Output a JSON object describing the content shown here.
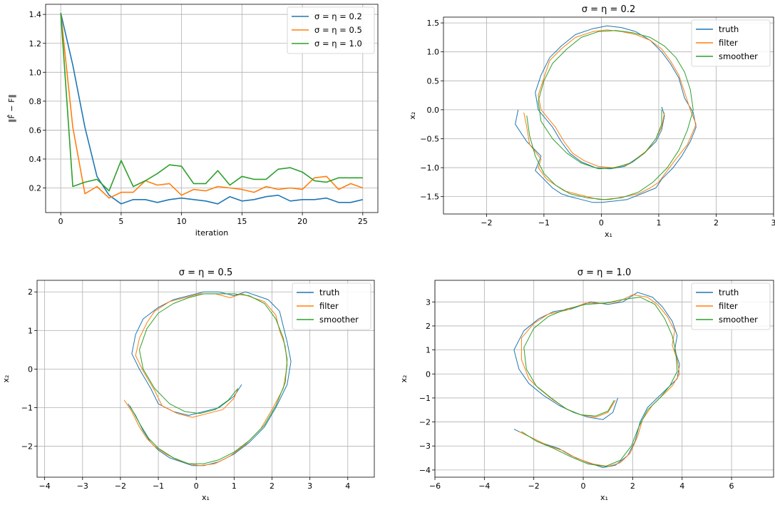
{
  "colors": {
    "blue": "#1f77b4",
    "orange": "#ff7f0e",
    "green": "#2ca02c"
  },
  "chart_data": [
    {
      "type": "line",
      "title": "",
      "xlabel": "iteration",
      "ylabel": "‖F̂ − F‖",
      "xlim": [
        -1.25,
        26.25
      ],
      "ylim": [
        0.03,
        1.47
      ],
      "xticks": [
        0,
        5,
        10,
        15,
        20,
        25
      ],
      "yticks": [
        0.2,
        0.4,
        0.6,
        0.8,
        1.0,
        1.2,
        1.4
      ],
      "xtick_labels": [
        "0",
        "5",
        "10",
        "15",
        "20",
        "25"
      ],
      "ytick_labels": [
        "0.2",
        "0.4",
        "0.6",
        "0.8",
        "1.0",
        "1.2",
        "1.4"
      ],
      "grid": true,
      "legend_position": "top-right",
      "x": [
        0,
        1,
        2,
        3,
        4,
        5,
        6,
        7,
        8,
        9,
        10,
        11,
        12,
        13,
        14,
        15,
        16,
        17,
        18,
        19,
        20,
        21,
        22,
        23,
        24,
        25
      ],
      "series": [
        {
          "name": "σ = η = 0.2",
          "color": "blue",
          "values": [
            1.41,
            1.05,
            0.62,
            0.28,
            0.15,
            0.09,
            0.12,
            0.12,
            0.1,
            0.12,
            0.13,
            0.12,
            0.11,
            0.09,
            0.14,
            0.11,
            0.12,
            0.14,
            0.15,
            0.11,
            0.12,
            0.12,
            0.13,
            0.1,
            0.1,
            0.12
          ]
        },
        {
          "name": "σ = η = 0.5",
          "color": "orange",
          "values": [
            1.41,
            0.62,
            0.16,
            0.21,
            0.13,
            0.17,
            0.17,
            0.25,
            0.22,
            0.23,
            0.15,
            0.19,
            0.18,
            0.21,
            0.2,
            0.19,
            0.17,
            0.21,
            0.19,
            0.2,
            0.19,
            0.27,
            0.28,
            0.19,
            0.23,
            0.2
          ]
        },
        {
          "name": "σ = η = 1.0",
          "color": "green",
          "values": [
            1.41,
            0.21,
            0.24,
            0.26,
            0.18,
            0.39,
            0.21,
            0.25,
            0.3,
            0.36,
            0.35,
            0.23,
            0.23,
            0.32,
            0.22,
            0.28,
            0.26,
            0.26,
            0.33,
            0.34,
            0.31,
            0.25,
            0.24,
            0.27,
            0.27,
            0.27
          ]
        }
      ]
    },
    {
      "type": "line",
      "title": "σ = η = 0.2",
      "xlabel": "x₁",
      "ylabel": "x₂",
      "xlim": [
        -2.75,
        3.0
      ],
      "ylim": [
        -1.8,
        1.6
      ],
      "xticks": [
        -2,
        -1,
        0,
        1,
        2,
        3
      ],
      "yticks": [
        -1.5,
        -1.0,
        -0.5,
        0.0,
        0.5,
        1.0,
        1.5
      ],
      "xtick_labels": [
        "−2",
        "−1",
        "0",
        "1",
        "2",
        "3"
      ],
      "ytick_labels": [
        "−1.5",
        "−1.0",
        "−0.5",
        "0.0",
        "0.5",
        "1.0",
        "1.5"
      ],
      "grid": true,
      "legend_position": "top-right",
      "series": [
        {
          "name": "truth",
          "color": "blue",
          "x": [
            -1.45,
            -1.5,
            -1.3,
            -1.05,
            -1.15,
            -1.0,
            -0.85,
            -0.7,
            -0.55,
            -0.35,
            -0.15,
            0.0,
            0.2,
            0.45,
            0.7,
            0.95,
            1.05,
            1.25,
            1.4,
            1.55,
            1.65,
            1.6,
            1.45,
            1.35,
            1.2,
            1.05,
            0.85,
            0.6,
            0.35,
            0.1,
            -0.15,
            -0.45,
            -0.7,
            -0.9,
            -1.05,
            -1.15,
            -1.1,
            -0.85,
            -0.7,
            -0.55,
            -0.35,
            -0.1,
            0.15,
            0.4,
            0.55,
            0.75,
            0.95,
            1.05,
            1.1,
            1.05
          ],
          "y": [
            0.0,
            -0.25,
            -0.55,
            -0.8,
            -1.05,
            -1.2,
            -1.35,
            -1.45,
            -1.5,
            -1.55,
            -1.6,
            -1.6,
            -1.58,
            -1.55,
            -1.45,
            -1.35,
            -1.2,
            -1.0,
            -0.8,
            -0.55,
            -0.3,
            -0.05,
            0.2,
            0.55,
            0.8,
            1.0,
            1.2,
            1.35,
            1.42,
            1.45,
            1.4,
            1.3,
            1.1,
            0.9,
            0.6,
            0.3,
            0.0,
            -0.3,
            -0.55,
            -0.75,
            -0.9,
            -1.0,
            -1.02,
            -0.98,
            -0.9,
            -0.75,
            -0.55,
            -0.35,
            -0.1,
            0.05
          ]
        },
        {
          "name": "filter",
          "color": "orange",
          "x": [
            -1.35,
            -1.3,
            -1.25,
            -1.05,
            -1.1,
            -0.95,
            -0.8,
            -0.65,
            -0.45,
            -0.25,
            -0.05,
            0.15,
            0.4,
            0.65,
            0.85,
            1.0,
            1.15,
            1.3,
            1.5,
            1.65,
            1.55,
            1.45,
            1.35,
            1.2,
            1.05,
            0.85,
            0.6,
            0.35,
            0.1,
            -0.15,
            -0.45,
            -0.7,
            -0.9,
            -1.0,
            -1.1,
            -1.05,
            -0.8,
            -0.65,
            -0.5,
            -0.3,
            -0.05,
            0.2,
            0.45,
            0.6,
            0.8,
            0.95,
            1.05,
            1.1
          ],
          "y": [
            -0.05,
            -0.3,
            -0.6,
            -0.85,
            -1.0,
            -1.2,
            -1.3,
            -1.4,
            -1.45,
            -1.5,
            -1.55,
            -1.55,
            -1.5,
            -1.45,
            -1.35,
            -1.25,
            -1.05,
            -0.85,
            -0.6,
            -0.25,
            0.0,
            0.3,
            0.6,
            0.85,
            1.05,
            1.2,
            1.3,
            1.35,
            1.38,
            1.35,
            1.25,
            1.05,
            0.85,
            0.55,
            0.25,
            0.0,
            -0.3,
            -0.55,
            -0.75,
            -0.88,
            -0.98,
            -1.0,
            -0.95,
            -0.85,
            -0.7,
            -0.5,
            -0.3,
            -0.05
          ]
        },
        {
          "name": "smoother",
          "color": "green",
          "x": [
            -1.3,
            -1.25,
            -1.15,
            -1.0,
            -0.8,
            -0.55,
            -0.25,
            0.05,
            0.35,
            0.65,
            0.9,
            1.15,
            1.35,
            1.5,
            1.6,
            1.55,
            1.45,
            1.3,
            1.1,
            0.85,
            0.55,
            0.25,
            -0.05,
            -0.35,
            -0.6,
            -0.85,
            -1.0,
            -1.1,
            -1.05,
            -0.85,
            -0.6,
            -0.35,
            -0.05,
            0.25,
            0.5,
            0.75,
            0.95,
            1.05,
            1.05
          ],
          "y": [
            -0.1,
            -0.45,
            -0.8,
            -1.1,
            -1.3,
            -1.45,
            -1.52,
            -1.55,
            -1.52,
            -1.42,
            -1.25,
            -1.0,
            -0.7,
            -0.35,
            0.0,
            0.35,
            0.65,
            0.9,
            1.1,
            1.25,
            1.33,
            1.37,
            1.35,
            1.25,
            1.05,
            0.8,
            0.5,
            0.15,
            -0.2,
            -0.5,
            -0.75,
            -0.92,
            -1.02,
            -1.0,
            -0.92,
            -0.75,
            -0.5,
            -0.25,
            0.0
          ]
        }
      ]
    },
    {
      "type": "line",
      "title": "σ = η = 0.5",
      "xlabel": "x₁",
      "ylabel": "x₂",
      "xlim": [
        -4.2,
        4.7
      ],
      "ylim": [
        -2.8,
        2.3
      ],
      "xticks": [
        -4,
        -3,
        -2,
        -1,
        0,
        1,
        2,
        3,
        4
      ],
      "yticks": [
        -2,
        -1,
        0,
        1,
        2
      ],
      "xtick_labels": [
        "−4",
        "−3",
        "−2",
        "−1",
        "0",
        "1",
        "2",
        "3",
        "4"
      ],
      "ytick_labels": [
        "−2",
        "−1",
        "0",
        "1",
        "2"
      ],
      "grid": true,
      "legend_position": "top-right",
      "series": [
        {
          "name": "truth",
          "color": "blue",
          "x": [
            -1.8,
            -1.6,
            -1.4,
            -1.2,
            -1.0,
            -0.7,
            -0.4,
            -0.1,
            0.2,
            0.6,
            1.0,
            1.4,
            1.8,
            2.1,
            2.4,
            2.5,
            2.4,
            2.3,
            2.2,
            1.9,
            1.6,
            1.3,
            1.0,
            0.6,
            0.2,
            -0.2,
            -0.6,
            -1.0,
            -1.4,
            -1.6,
            -1.7,
            -1.5,
            -1.2,
            -1.0,
            -0.6,
            -0.2,
            0.2,
            0.6,
            1.0,
            1.2
          ],
          "y": [
            -0.9,
            -1.2,
            -1.6,
            -1.9,
            -2.1,
            -2.3,
            -2.4,
            -2.5,
            -2.5,
            -2.4,
            -2.2,
            -1.9,
            -1.5,
            -1.0,
            -0.4,
            0.2,
            0.7,
            1.1,
            1.5,
            1.8,
            1.9,
            2.0,
            1.9,
            2.0,
            2.0,
            1.9,
            1.8,
            1.6,
            1.3,
            0.9,
            0.4,
            0.0,
            -0.5,
            -0.9,
            -1.1,
            -1.2,
            -1.1,
            -1.0,
            -0.7,
            -0.4
          ]
        },
        {
          "name": "filter",
          "color": "orange",
          "x": [
            -1.9,
            -1.7,
            -1.5,
            -1.3,
            -1.1,
            -0.8,
            -0.5,
            -0.2,
            0.1,
            0.5,
            0.9,
            1.3,
            1.7,
            2.0,
            2.3,
            2.4,
            2.35,
            2.2,
            2.1,
            1.8,
            1.5,
            1.2,
            0.9,
            0.5,
            0.1,
            -0.3,
            -0.7,
            -1.1,
            -1.3,
            -1.5,
            -1.6,
            -1.4,
            -1.1,
            -0.9,
            -0.5,
            -0.1,
            0.3,
            0.7,
            1.0,
            1.1
          ],
          "y": [
            -0.8,
            -1.1,
            -1.5,
            -1.8,
            -2.0,
            -2.2,
            -2.35,
            -2.45,
            -2.5,
            -2.45,
            -2.25,
            -1.95,
            -1.55,
            -1.05,
            -0.5,
            0.1,
            0.6,
            1.0,
            1.4,
            1.75,
            1.85,
            1.95,
            1.85,
            1.95,
            1.95,
            1.85,
            1.75,
            1.5,
            1.2,
            0.8,
            0.35,
            -0.05,
            -0.55,
            -0.95,
            -1.15,
            -1.25,
            -1.15,
            -1.05,
            -0.75,
            -0.5
          ]
        },
        {
          "name": "smoother",
          "color": "green",
          "x": [
            -1.75,
            -1.5,
            -1.25,
            -1.0,
            -0.6,
            -0.2,
            0.2,
            0.6,
            1.0,
            1.4,
            1.8,
            2.1,
            2.35,
            2.4,
            2.3,
            2.1,
            1.8,
            1.4,
            1.0,
            0.6,
            0.2,
            -0.2,
            -0.6,
            -1.0,
            -1.3,
            -1.5,
            -1.4,
            -1.1,
            -0.7,
            -0.3,
            0.1,
            0.5,
            0.85,
            1.1
          ],
          "y": [
            -0.95,
            -1.4,
            -1.8,
            -2.05,
            -2.3,
            -2.45,
            -2.45,
            -2.35,
            -2.15,
            -1.85,
            -1.45,
            -0.95,
            -0.35,
            0.25,
            0.8,
            1.3,
            1.7,
            1.9,
            1.95,
            1.95,
            1.95,
            1.85,
            1.7,
            1.45,
            1.05,
            0.5,
            0.0,
            -0.5,
            -0.9,
            -1.1,
            -1.15,
            -1.05,
            -0.8,
            -0.5
          ]
        }
      ]
    },
    {
      "type": "line",
      "title": "σ = η = 1.0",
      "xlabel": "x₁",
      "ylabel": "x₂",
      "xlim": [
        -6.0,
        7.7
      ],
      "ylim": [
        -4.3,
        3.9
      ],
      "xticks": [
        -6,
        -4,
        -2,
        0,
        2,
        4,
        6
      ],
      "yticks": [
        -4,
        -3,
        -2,
        -1,
        0,
        1,
        2,
        3
      ],
      "xtick_labels": [
        "−6",
        "−4",
        "−2",
        "0",
        "2",
        "4",
        "6"
      ],
      "ytick_labels": [
        "−4",
        "−3",
        "−2",
        "−1",
        "0",
        "1",
        "2",
        "3"
      ],
      "grid": true,
      "legend_position": "top-right",
      "series": [
        {
          "name": "truth",
          "color": "blue",
          "x": [
            -2.8,
            -2.2,
            -1.6,
            -1.0,
            -0.5,
            0.2,
            0.8,
            1.3,
            1.8,
            2.1,
            2.3,
            2.6,
            3.0,
            3.4,
            3.8,
            3.9,
            3.7,
            3.8,
            3.6,
            3.2,
            2.8,
            2.2,
            1.6,
            1.0,
            0.3,
            -0.5,
            -1.2,
            -1.8,
            -2.4,
            -2.8,
            -2.6,
            -2.2,
            -1.6,
            -1.0,
            -0.4,
            0.2,
            0.8,
            1.2,
            1.4
          ],
          "y": [
            -2.3,
            -2.6,
            -2.9,
            -3.1,
            -3.4,
            -3.7,
            -3.9,
            -3.8,
            -3.4,
            -2.8,
            -2.0,
            -1.4,
            -1.0,
            -0.6,
            -0.2,
            0.4,
            1.0,
            1.6,
            2.2,
            2.8,
            3.2,
            3.4,
            3.0,
            2.9,
            3.0,
            2.7,
            2.6,
            2.3,
            1.8,
            1.0,
            0.2,
            -0.4,
            -0.9,
            -1.3,
            -1.6,
            -1.8,
            -1.9,
            -1.6,
            -1.0
          ]
        },
        {
          "name": "filter",
          "color": "orange",
          "x": [
            -2.6,
            -2.0,
            -1.4,
            -0.8,
            -0.3,
            0.4,
            1.0,
            1.5,
            1.9,
            2.2,
            2.4,
            2.8,
            3.2,
            3.6,
            3.9,
            3.8,
            3.6,
            3.7,
            3.4,
            3.0,
            2.6,
            2.0,
            1.4,
            0.8,
            0.1,
            -0.7,
            -1.4,
            -2.0,
            -2.5,
            -2.5,
            -2.2,
            -1.8,
            -1.2,
            -0.6,
            -0.1,
            0.5,
            1.0,
            1.3
          ],
          "y": [
            -2.4,
            -2.7,
            -3.0,
            -3.2,
            -3.5,
            -3.75,
            -3.85,
            -3.7,
            -3.3,
            -2.6,
            -1.9,
            -1.3,
            -0.9,
            -0.5,
            0.0,
            0.6,
            1.2,
            1.8,
            2.4,
            2.9,
            3.2,
            3.3,
            3.0,
            2.95,
            2.95,
            2.65,
            2.5,
            2.1,
            1.5,
            0.6,
            -0.2,
            -0.6,
            -1.1,
            -1.5,
            -1.7,
            -1.8,
            -1.6,
            -1.1
          ]
        },
        {
          "name": "smoother",
          "color": "green",
          "x": [
            -2.5,
            -1.9,
            -1.2,
            -0.5,
            0.2,
            0.9,
            1.5,
            1.95,
            2.25,
            2.6,
            3.1,
            3.5,
            3.8,
            3.75,
            3.6,
            3.3,
            2.9,
            2.3,
            1.6,
            0.9,
            0.1,
            -0.7,
            -1.4,
            -2.0,
            -2.4,
            -2.3,
            -1.9,
            -1.3,
            -0.7,
            -0.1,
            0.5,
            1.0,
            1.25
          ],
          "y": [
            -2.4,
            -2.8,
            -3.1,
            -3.45,
            -3.75,
            -3.85,
            -3.6,
            -3.0,
            -2.2,
            -1.5,
            -1.0,
            -0.5,
            0.1,
            0.9,
            1.6,
            2.3,
            2.9,
            3.2,
            3.1,
            2.95,
            2.9,
            2.7,
            2.4,
            1.9,
            1.1,
            0.2,
            -0.5,
            -1.0,
            -1.45,
            -1.7,
            -1.75,
            -1.55,
            -1.1
          ]
        }
      ]
    }
  ]
}
